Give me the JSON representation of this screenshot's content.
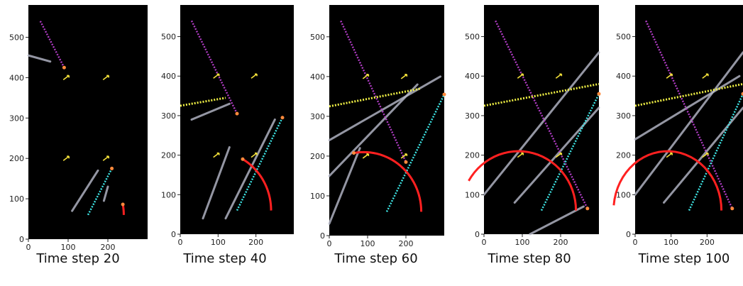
{
  "figure": {
    "y_ticks": [
      "0",
      "100",
      "200",
      "300",
      "400",
      "500"
    ],
    "x_ticks": [
      "0",
      "100",
      "200"
    ],
    "panels": [
      {
        "caption": "Time step 20"
      },
      {
        "caption": "Time step 40"
      },
      {
        "caption": "Time step 60"
      },
      {
        "caption": "Time step 80"
      },
      {
        "caption": "Time step 100"
      }
    ]
  }
}
